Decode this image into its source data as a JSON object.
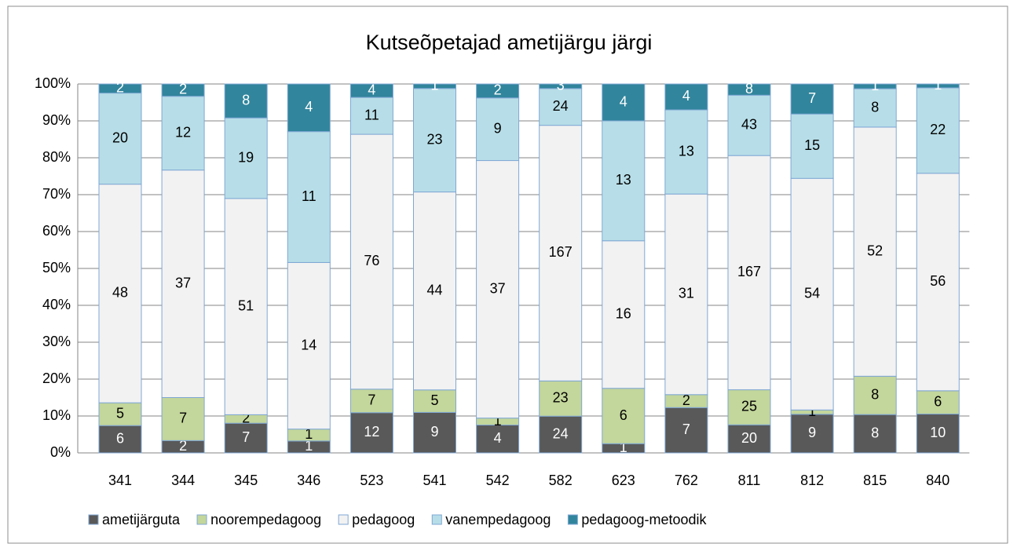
{
  "chart_data": {
    "type": "bar",
    "stacked": "percent",
    "title": "Kutseõpetajad ametijärgu järgi",
    "categories": [
      "341",
      "344",
      "345",
      "346",
      "523",
      "541",
      "542",
      "582",
      "623",
      "762",
      "811",
      "812",
      "815",
      "840"
    ],
    "series": [
      {
        "name": "ametijärguta",
        "color": "#595959",
        "values": [
          6,
          2,
          7,
          1,
          12,
          9,
          4,
          24,
          1,
          7,
          20,
          9,
          8,
          10
        ]
      },
      {
        "name": "noorempedagoog",
        "color": "#c3d69b",
        "values": [
          5,
          7,
          2,
          1,
          7,
          5,
          1,
          23,
          6,
          2,
          25,
          1,
          8,
          6
        ]
      },
      {
        "name": "pedagoog",
        "color": "#f2f2f2",
        "values": [
          48,
          37,
          51,
          14,
          76,
          44,
          37,
          167,
          16,
          31,
          167,
          54,
          52,
          56
        ]
      },
      {
        "name": "vanempedagoog",
        "color": "#b7dee8",
        "values": [
          20,
          12,
          19,
          11,
          11,
          23,
          9,
          24,
          13,
          13,
          43,
          15,
          8,
          22
        ]
      },
      {
        "name": "pedagoog-metoodik",
        "color": "#31859c",
        "values": [
          2,
          2,
          8,
          4,
          4,
          1,
          2,
          3,
          4,
          4,
          8,
          7,
          1,
          1
        ]
      }
    ],
    "ylim": [
      0,
      100
    ],
    "yticks": [
      {
        "value": 0,
        "label": "0%"
      },
      {
        "value": 10,
        "label": "10%"
      },
      {
        "value": 20,
        "label": "20%"
      },
      {
        "value": 30,
        "label": "30%"
      },
      {
        "value": 40,
        "label": "40%"
      },
      {
        "value": 50,
        "label": "50%"
      },
      {
        "value": 60,
        "label": "60%"
      },
      {
        "value": 70,
        "label": "70%"
      },
      {
        "value": 80,
        "label": "80%"
      },
      {
        "value": 90,
        "label": "90%"
      },
      {
        "value": 100,
        "label": "100%"
      }
    ],
    "grid": true,
    "legend": "bottom"
  }
}
